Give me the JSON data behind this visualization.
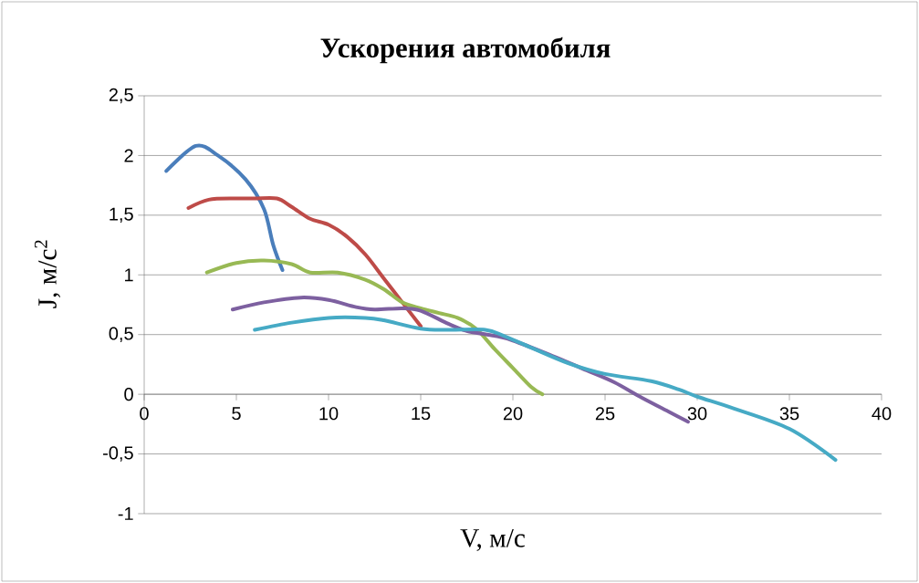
{
  "chart_data": {
    "type": "line",
    "title": "Ускорения автомобиля",
    "xlabel": "V, м/с",
    "ylabel": "J, м/с$^{2}$",
    "xlim": [
      0,
      40
    ],
    "xticks": [
      0,
      5,
      10,
      15,
      20,
      25,
      30,
      35,
      40
    ],
    "ylim": [
      -1,
      2.5
    ],
    "yticks": [
      {
        "value": -1,
        "label": "-1"
      },
      {
        "value": -0.5,
        "label": "-0,5"
      },
      {
        "value": 0,
        "label": "0"
      },
      {
        "value": 0.5,
        "label": "0,5"
      },
      {
        "value": 1,
        "label": "1"
      },
      {
        "value": 1.5,
        "label": "1,5"
      },
      {
        "value": 2,
        "label": "2"
      },
      {
        "value": 2.5,
        "label": "2,5"
      }
    ],
    "grid": "y",
    "marker": "none",
    "line_style": "solid",
    "series": [
      {
        "color": "#4a7ebb",
        "x": [
          1.2,
          2.8,
          4,
          5.5,
          6.5,
          7,
          7.5
        ],
        "values": [
          1.87,
          2.08,
          2.0,
          1.8,
          1.55,
          1.25,
          1.04
        ]
      },
      {
        "color": "#be4b48",
        "x": [
          2.4,
          3.5,
          5,
          6,
          7.2,
          8,
          9,
          10,
          11,
          12,
          13,
          14,
          15
        ],
        "values": [
          1.56,
          1.63,
          1.64,
          1.64,
          1.64,
          1.57,
          1.47,
          1.42,
          1.32,
          1.17,
          0.97,
          0.77,
          0.57
        ]
      },
      {
        "color": "#98b954",
        "x": [
          3.4,
          5,
          6.5,
          8,
          9,
          10.5,
          12,
          13,
          14,
          15,
          16,
          17,
          18,
          19,
          20,
          21,
          21.6
        ],
        "values": [
          1.02,
          1.1,
          1.12,
          1.09,
          1.02,
          1.02,
          0.96,
          0.88,
          0.77,
          0.72,
          0.68,
          0.64,
          0.55,
          0.38,
          0.22,
          0.06,
          0.0
        ]
      },
      {
        "color": "#7d60a0",
        "x": [
          4.8,
          6.5,
          8.5,
          10,
          11.5,
          12.5,
          14,
          15,
          16.5,
          17.5,
          19,
          20,
          22,
          24,
          25.5,
          27,
          28.5,
          29.5
        ],
        "values": [
          0.71,
          0.77,
          0.81,
          0.79,
          0.73,
          0.71,
          0.72,
          0.7,
          0.59,
          0.53,
          0.49,
          0.45,
          0.33,
          0.2,
          0.1,
          -0.03,
          -0.15,
          -0.23
        ]
      },
      {
        "color": "#46aac5",
        "x": [
          6,
          8,
          10,
          12,
          13,
          15,
          16.5,
          18.5,
          19.5,
          21,
          23,
          25,
          27.5,
          29,
          30,
          32,
          35,
          37.5
        ],
        "values": [
          0.54,
          0.6,
          0.64,
          0.64,
          0.62,
          0.55,
          0.54,
          0.54,
          0.49,
          0.39,
          0.26,
          0.17,
          0.11,
          0.04,
          -0.02,
          -0.12,
          -0.29,
          -0.55
        ]
      }
    ]
  }
}
